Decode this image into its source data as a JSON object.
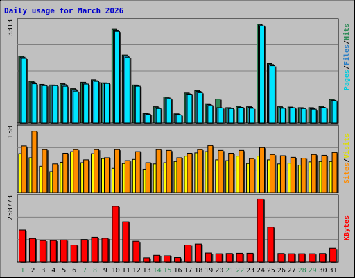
{
  "chart_data": [
    {
      "type": "bar",
      "title": "Daily usage for March 2026",
      "categories": [
        "1",
        "2",
        "3",
        "4",
        "5",
        "6",
        "7",
        "8",
        "9",
        "10",
        "11",
        "12",
        "13",
        "14",
        "15",
        "16",
        "17",
        "18",
        "19",
        "20",
        "21",
        "22",
        "23",
        "24",
        "25",
        "26",
        "27",
        "28",
        "29",
        "30",
        "31"
      ],
      "weekend_days": [
        "1",
        "7",
        "8",
        "14",
        "15",
        "21",
        "22",
        "28",
        "29"
      ],
      "ylabel_parts": [
        "Pages",
        "Files",
        "Hits"
      ],
      "ymax_label": "3313",
      "ylim": [
        0,
        3313
      ],
      "series": [
        {
          "name": "Hits",
          "color": "#2e8b57",
          "values": [
            2180,
            1360,
            1260,
            1240,
            1280,
            1120,
            1330,
            1410,
            1310,
            3060,
            2220,
            1240,
            320,
            530,
            850,
            300,
            980,
            1060,
            630,
            780,
            500,
            540,
            530,
            3230,
            1940,
            530,
            520,
            500,
            500,
            540,
            770
          ]
        },
        {
          "name": "Files",
          "color": "#2b93c5",
          "values": [
            2150,
            1330,
            1240,
            1230,
            1250,
            1090,
            1300,
            1380,
            1290,
            3030,
            2190,
            1220,
            300,
            500,
            820,
            280,
            950,
            1030,
            600,
            500,
            480,
            510,
            510,
            3200,
            1910,
            500,
            500,
            480,
            470,
            510,
            740
          ]
        },
        {
          "name": "Pages",
          "color": "#00e5ff",
          "values": [
            2110,
            1280,
            1220,
            1220,
            1200,
            1040,
            1270,
            1360,
            1290,
            2990,
            2150,
            1200,
            280,
            470,
            790,
            260,
            940,
            990,
            570,
            490,
            470,
            500,
            480,
            3170,
            1870,
            480,
            490,
            470,
            450,
            490,
            720
          ]
        }
      ]
    },
    {
      "type": "bar",
      "categories": [
        "1",
        "2",
        "3",
        "4",
        "5",
        "6",
        "7",
        "8",
        "9",
        "10",
        "11",
        "12",
        "13",
        "14",
        "15",
        "16",
        "17",
        "18",
        "19",
        "20",
        "21",
        "22",
        "23",
        "24",
        "25",
        "26",
        "27",
        "28",
        "29",
        "30",
        "31"
      ],
      "ylabel_parts": [
        "Sites",
        "Visits"
      ],
      "ymax_label": "158",
      "ylim": [
        0,
        158
      ],
      "series": [
        {
          "name": "Visits",
          "color": "#ffff00",
          "values": [
            95,
            85,
            64,
            51,
            74,
            100,
            73,
            95,
            83,
            59,
            71,
            81,
            57,
            70,
            73,
            76,
            89,
            97,
            100,
            80,
            78,
            89,
            71,
            89,
            80,
            70,
            72,
            67,
            75,
            76,
            76
          ]
        },
        {
          "name": "Sites",
          "color": "#ff8c00",
          "values": [
            114,
            150,
            105,
            70,
            96,
            105,
            80,
            105,
            85,
            105,
            78,
            100,
            73,
            105,
            103,
            85,
            96,
            105,
            115,
            103,
            96,
            103,
            83,
            110,
            93,
            90,
            86,
            84,
            93,
            91,
            98
          ]
        }
      ]
    },
    {
      "type": "bar",
      "categories": [
        "1",
        "2",
        "3",
        "4",
        "5",
        "6",
        "7",
        "8",
        "9",
        "10",
        "11",
        "12",
        "13",
        "14",
        "15",
        "16",
        "17",
        "18",
        "19",
        "20",
        "21",
        "22",
        "23",
        "24",
        "25",
        "26",
        "27",
        "28",
        "29",
        "30",
        "31"
      ],
      "ylabel_parts": [
        "KBytes"
      ],
      "ymax_label": "258773",
      "ylim": [
        0,
        258773
      ],
      "series": [
        {
          "name": "KBytes",
          "color": "#ff0000",
          "values": [
            128000,
            94000,
            86000,
            86000,
            88000,
            68000,
            90000,
            99000,
            95000,
            223000,
            161000,
            83000,
            17000,
            27000,
            25000,
            18000,
            68000,
            72000,
            36000,
            33000,
            34000,
            35000,
            35000,
            252000,
            140000,
            34000,
            33000,
            33000,
            33000,
            34000,
            55000
          ]
        }
      ]
    }
  ]
}
